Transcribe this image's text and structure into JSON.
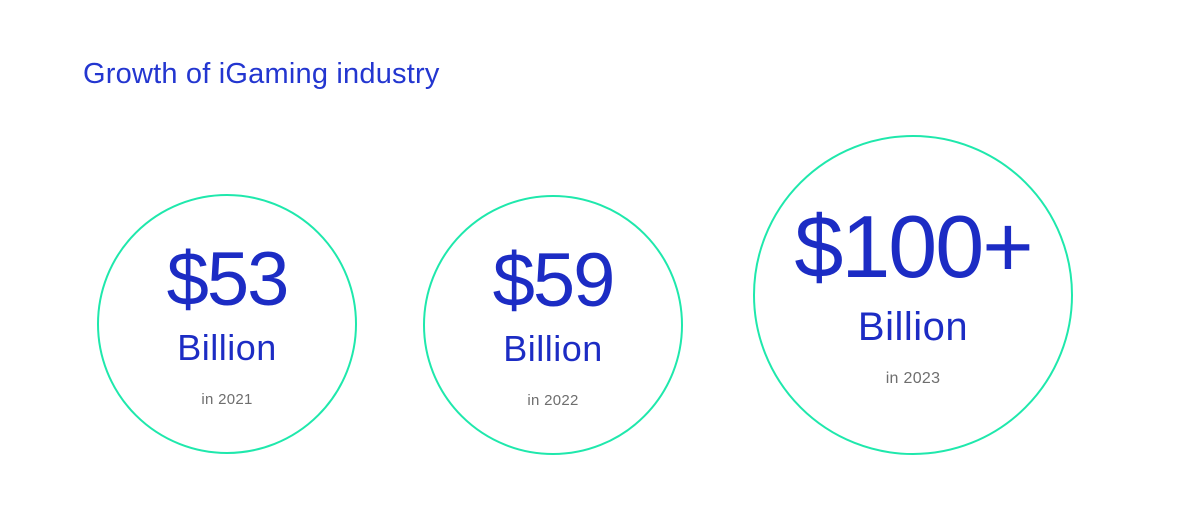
{
  "title": "Growth of iGaming industry",
  "colors": {
    "title": "#2336D0",
    "value": "#1C2CC4",
    "year": "#6E6E6E",
    "ring": "#1FE8AC",
    "background": "#FFFFFF"
  },
  "circles": [
    {
      "value": "$53",
      "unit": "Billion",
      "year": "in 2021"
    },
    {
      "value": "$59",
      "unit": "Billion",
      "year": "in 2022"
    },
    {
      "value": "$100+",
      "unit": "Billion",
      "year": "in 2023"
    }
  ],
  "chart_data": {
    "type": "bar",
    "subtype": "proportional-circle-infographic",
    "title": "Growth of iGaming industry",
    "categories": [
      "2021",
      "2022",
      "2023"
    ],
    "values": [
      53,
      59,
      100
    ],
    "value_labels": [
      "$53 Billion",
      "$59 Billion",
      "$100+ Billion"
    ],
    "unit": "USD billions",
    "notes": "2023 value shown as $100+ (open-ended); circle size encodes magnitude, third circle drawn larger",
    "legend": "none",
    "axes": "none"
  }
}
